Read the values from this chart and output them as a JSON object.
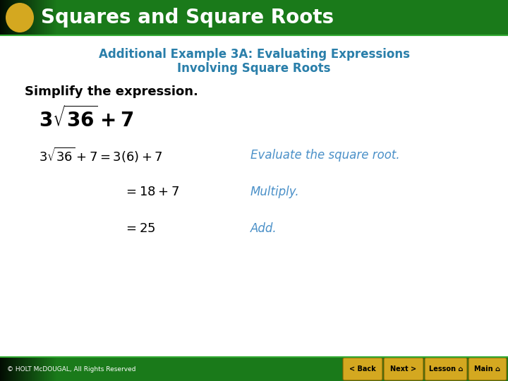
{
  "header_bg_color": "#1a7a1a",
  "header_text": "Squares and Square Roots",
  "header_text_color": "#ffffff",
  "circle_color": "#d4a820",
  "subtitle_color": "#2a7faa",
  "subtitle_line1": "Additional Example 3A: Evaluating Expressions",
  "subtitle_line2": "Involving Square Roots",
  "body_bg_color": "#ffffff",
  "simplify_label": "Simplify the expression.",
  "simplify_color": "#000000",
  "step1_right": "Evaluate the square root.",
  "step2_right": "Multiply.",
  "step3_right": "Add.",
  "math_color": "#000000",
  "annotation_color": "#4a90c8",
  "footer_bg_color": "#1a7a1a",
  "footer_text": "© HOLT McDOUGAL, All Rights Reserved",
  "footer_text_color": "#ffffff",
  "button_color": "#d4a820",
  "button_labels": [
    "< Back",
    "Next >",
    "Lesson",
    "Main"
  ]
}
